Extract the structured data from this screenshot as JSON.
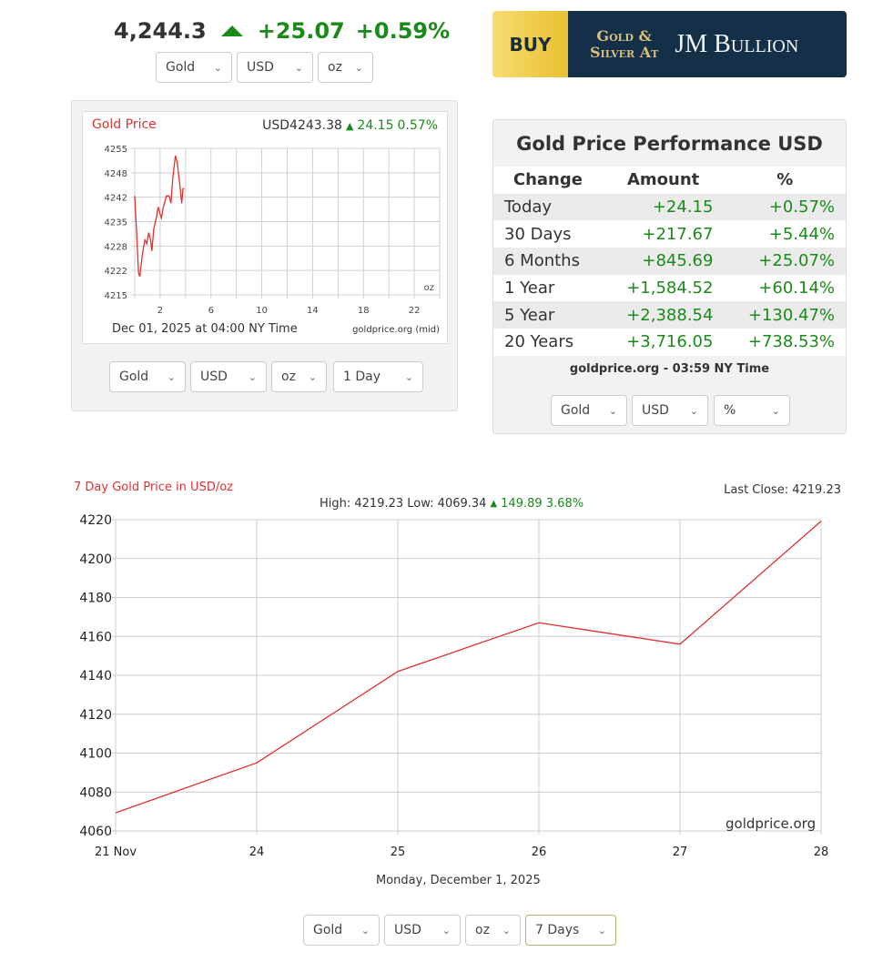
{
  "ticker": {
    "price": "4,244.3",
    "change": "+25.07",
    "percent": "+0.59%",
    "direction": "up",
    "color": "#1a8a1a"
  },
  "top_selects": [
    "Gold",
    "USD",
    "oz"
  ],
  "ad": {
    "buy": "BUY",
    "line1": "Gold &",
    "line2": "Silver At",
    "brand": "JM Bullion"
  },
  "small_chart": {
    "title": "Gold Price",
    "price": "USD4243.38",
    "change": "24.15",
    "percent": "0.57%",
    "unit": "oz",
    "footer_left": "Dec 01, 2025 at 04:00 NY Time",
    "footer_right": "goldprice.org (mid)",
    "chart_data": {
      "type": "line",
      "xlim": [
        0,
        24
      ],
      "ylim": [
        4215,
        4255
      ],
      "y_ticks": [
        "4255",
        "4248",
        "4242",
        "4235",
        "4228",
        "4222",
        "4215"
      ],
      "x_ticks": [
        "2",
        "6",
        "10",
        "14",
        "18",
        "22"
      ],
      "grid": true,
      "color": "#e03030",
      "x": [
        0,
        0.15,
        0.3,
        0.4,
        0.6,
        0.8,
        0.95,
        1.1,
        1.25,
        1.35,
        1.5,
        1.7,
        1.85,
        2.0,
        2.1,
        2.25,
        2.5,
        2.7,
        2.85,
        3.0,
        3.2,
        3.35,
        3.55,
        3.7,
        3.8,
        3.9
      ],
      "y": [
        4242,
        4232,
        4221,
        4220,
        4226,
        4230,
        4229,
        4232,
        4230,
        4227,
        4233,
        4236,
        4239,
        4237,
        4236,
        4239,
        4242,
        4242,
        4240,
        4247,
        4253,
        4251,
        4245,
        4240,
        4244,
        4244
      ]
    }
  },
  "small_selects": [
    "Gold",
    "USD",
    "oz",
    "1 Day"
  ],
  "performance": {
    "title": "Gold Price Performance USD",
    "headers": [
      "Change",
      "Amount",
      "%"
    ],
    "rows": [
      [
        "Today",
        "+24.15",
        "+0.57%"
      ],
      [
        "30 Days",
        "+217.67",
        "+5.44%"
      ],
      [
        "6 Months",
        "+845.69",
        "+25.07%"
      ],
      [
        "1 Year",
        "+1,584.52",
        "+60.14%"
      ],
      [
        "5 Year",
        "+2,388.54",
        "+130.47%"
      ],
      [
        "20 Years",
        "+3,716.05",
        "+738.53%"
      ]
    ],
    "footer": "goldprice.org - 03:59 NY Time",
    "selects": [
      "Gold",
      "USD",
      "%"
    ]
  },
  "big_chart": {
    "title": "7 Day Gold Price in USD/oz",
    "last_close": "Last Close: 4219.23",
    "high_low": "High: 4219.23 Low: 4069.34",
    "change": "149.89 3.68%",
    "watermark": "goldprice.org",
    "date": "Monday, December 1, 2025",
    "chart_data": {
      "type": "line",
      "categories": [
        "21 Nov",
        "24",
        "25",
        "26",
        "27",
        "28"
      ],
      "values": [
        4069.34,
        4095,
        4142,
        4167,
        4156,
        4219.23
      ],
      "ylim": [
        4060,
        4220
      ],
      "y_ticks": [
        "4220",
        "4200",
        "4180",
        "4160",
        "4140",
        "4120",
        "4100",
        "4080",
        "4060"
      ],
      "grid": true,
      "color": "#e03030"
    }
  },
  "big_selects": [
    "Gold",
    "USD",
    "oz",
    "7 Days"
  ]
}
